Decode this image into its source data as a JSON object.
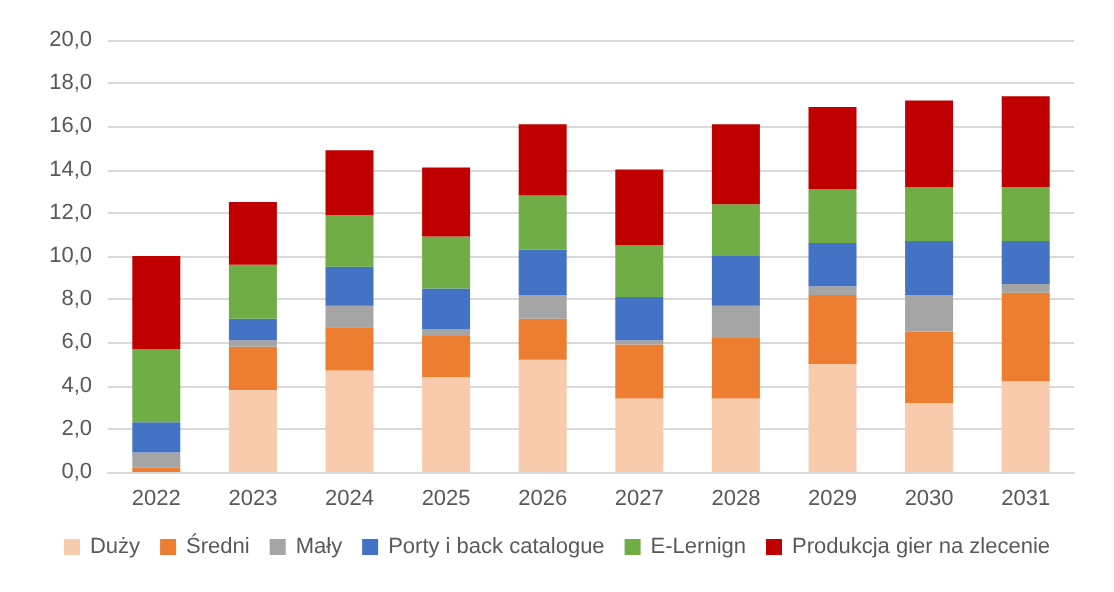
{
  "chart_data": {
    "type": "bar",
    "stacked": true,
    "categories": [
      "2022",
      "2023",
      "2024",
      "2025",
      "2026",
      "2027",
      "2028",
      "2029",
      "2030",
      "2031"
    ],
    "series": [
      {
        "name": "Duży",
        "color": "#f8cbad",
        "values": [
          0,
          3.8,
          4.7,
          4.4,
          5.2,
          3.4,
          3.4,
          5.0,
          3.2,
          4.2
        ]
      },
      {
        "name": "Średni",
        "color": "#ed7d31",
        "values": [
          0.2,
          2.0,
          2.0,
          1.9,
          1.9,
          2.5,
          2.8,
          3.2,
          3.3,
          4.1
        ]
      },
      {
        "name": "Mały",
        "color": "#a5a5a5",
        "values": [
          0.7,
          0.3,
          1.0,
          0.3,
          1.1,
          0.2,
          1.5,
          0.4,
          1.7,
          0.4
        ]
      },
      {
        "name": "Porty i back catalogue",
        "color": "#4472c4",
        "values": [
          1.4,
          1.0,
          1.8,
          1.9,
          2.1,
          2.0,
          2.3,
          2.0,
          2.5,
          2.0
        ]
      },
      {
        "name": "E-Lernign",
        "color": "#70ad47",
        "values": [
          3.4,
          2.5,
          2.4,
          2.4,
          2.5,
          2.4,
          2.4,
          2.5,
          2.5,
          2.5
        ]
      },
      {
        "name": "Produkcja gier na zlecenie",
        "color": "#c00000",
        "values": [
          4.3,
          2.9,
          3.0,
          3.2,
          3.3,
          3.5,
          3.7,
          3.8,
          4.0,
          4.2
        ]
      }
    ],
    "ylim": [
      0,
      20
    ],
    "yticks": [
      {
        "value": 0,
        "label": "0,0"
      },
      {
        "value": 2,
        "label": "2,0"
      },
      {
        "value": 4,
        "label": "4,0"
      },
      {
        "value": 6,
        "label": "6,0"
      },
      {
        "value": 8,
        "label": "8,0"
      },
      {
        "value": 10,
        "label": "10,0"
      },
      {
        "value": 12,
        "label": "12,0"
      },
      {
        "value": 14,
        "label": "14,0"
      },
      {
        "value": 16,
        "label": "16,0"
      },
      {
        "value": 18,
        "label": "18,0"
      },
      {
        "value": 20,
        "label": "20,0"
      }
    ],
    "grid": "y",
    "legend": "bottom"
  }
}
